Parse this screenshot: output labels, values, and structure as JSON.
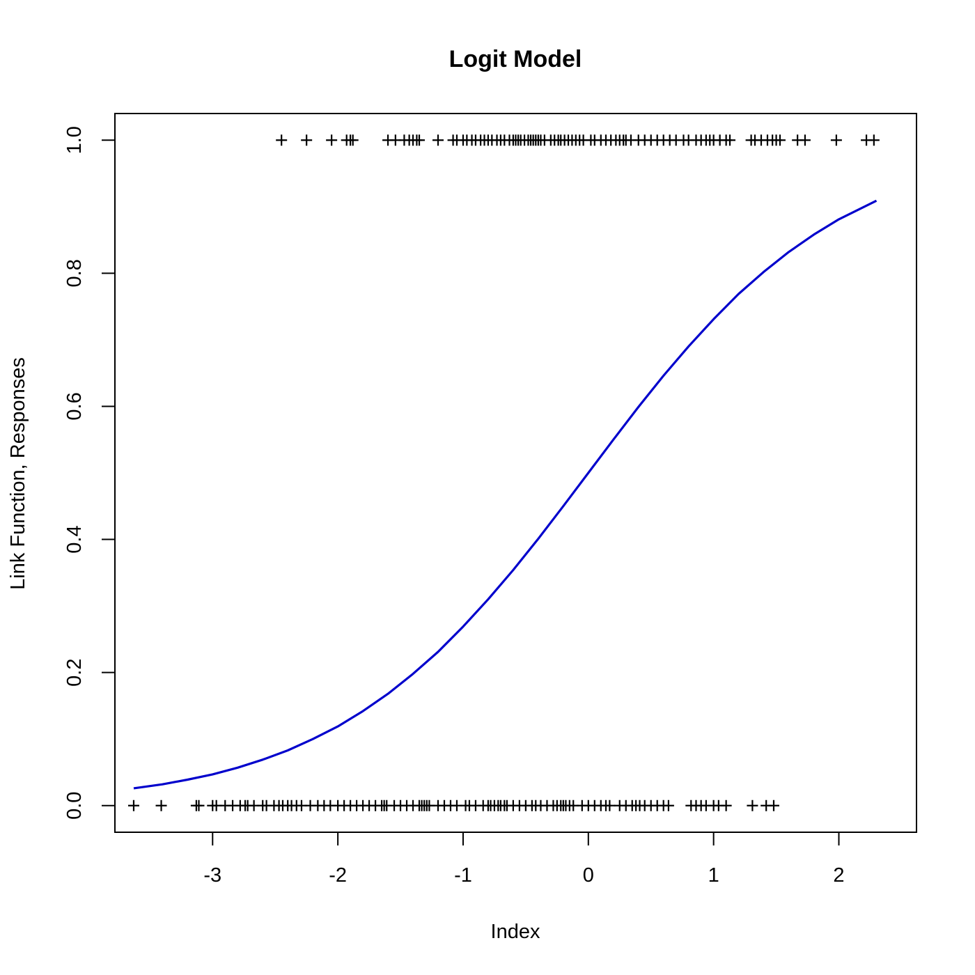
{
  "chart_data": {
    "type": "scatter",
    "title": "Logit Model",
    "xlabel": "Index",
    "ylabel": "Link Function, Responses",
    "xlim": [
      -3.78,
      2.62
    ],
    "ylim": [
      -0.04,
      1.04
    ],
    "x_ticks": [
      -3,
      -2,
      -1,
      0,
      1,
      2
    ],
    "x_tick_labels": [
      "-3",
      "-2",
      "-1",
      "0",
      "1",
      "2"
    ],
    "y_ticks": [
      0.0,
      0.2,
      0.4,
      0.6,
      0.8,
      1.0
    ],
    "y_tick_labels": [
      "0.0",
      "0.2",
      "0.4",
      "0.6",
      "0.8",
      "1.0"
    ],
    "grid": false,
    "legend": "none",
    "series": [
      {
        "kind": "points",
        "marker": "plus",
        "color": "#000000",
        "y": 1,
        "x": [
          -2.45,
          -2.25,
          -2.05,
          -1.93,
          -1.9,
          -1.88,
          -1.6,
          -1.54,
          -1.47,
          -1.43,
          -1.4,
          -1.37,
          -1.35,
          -1.2,
          -1.08,
          -1.05,
          -1.0,
          -0.97,
          -0.93,
          -0.9,
          -0.86,
          -0.83,
          -0.8,
          -0.77,
          -0.73,
          -0.7,
          -0.67,
          -0.63,
          -0.6,
          -0.58,
          -0.56,
          -0.54,
          -0.51,
          -0.48,
          -0.46,
          -0.44,
          -0.42,
          -0.4,
          -0.38,
          -0.35,
          -0.3,
          -0.27,
          -0.24,
          -0.22,
          -0.19,
          -0.16,
          -0.13,
          -0.1,
          -0.07,
          -0.04,
          0.02,
          0.05,
          0.1,
          0.14,
          0.18,
          0.22,
          0.25,
          0.28,
          0.3,
          0.34,
          0.4,
          0.45,
          0.5,
          0.55,
          0.6,
          0.65,
          0.7,
          0.76,
          0.8,
          0.86,
          0.9,
          0.94,
          0.97,
          1.0,
          1.05,
          1.1,
          1.13,
          1.3,
          1.33,
          1.38,
          1.43,
          1.47,
          1.5,
          1.53,
          1.67,
          1.73,
          1.98,
          2.22,
          2.28
        ]
      },
      {
        "kind": "points",
        "marker": "plus",
        "color": "#000000",
        "y": 0,
        "x": [
          -3.63,
          -3.41,
          -3.13,
          -3.11,
          -3.0,
          -2.97,
          -2.9,
          -2.84,
          -2.78,
          -2.74,
          -2.72,
          -2.67,
          -2.6,
          -2.57,
          -2.51,
          -2.47,
          -2.44,
          -2.4,
          -2.37,
          -2.33,
          -2.29,
          -2.22,
          -2.16,
          -2.11,
          -2.06,
          -2.0,
          -1.95,
          -1.9,
          -1.85,
          -1.8,
          -1.75,
          -1.7,
          -1.65,
          -1.63,
          -1.61,
          -1.55,
          -1.5,
          -1.45,
          -1.4,
          -1.35,
          -1.33,
          -1.31,
          -1.29,
          -1.27,
          -1.2,
          -1.15,
          -1.1,
          -1.05,
          -0.98,
          -0.95,
          -0.9,
          -0.84,
          -0.8,
          -0.78,
          -0.75,
          -0.72,
          -0.7,
          -0.67,
          -0.65,
          -0.6,
          -0.55,
          -0.5,
          -0.45,
          -0.42,
          -0.38,
          -0.33,
          -0.28,
          -0.25,
          -0.22,
          -0.2,
          -0.18,
          -0.15,
          -0.12,
          -0.05,
          0.0,
          0.05,
          0.1,
          0.14,
          0.17,
          0.25,
          0.3,
          0.35,
          0.38,
          0.41,
          0.45,
          0.5,
          0.55,
          0.6,
          0.64,
          0.82,
          0.86,
          0.9,
          0.94,
          1.0,
          1.04,
          1.1,
          1.31,
          1.42,
          1.48
        ]
      },
      {
        "kind": "line",
        "function": "logistic",
        "color": "#0000CC",
        "x": [
          -3.63,
          -3.4,
          -3.2,
          -3.0,
          -2.8,
          -2.6,
          -2.4,
          -2.2,
          -2.0,
          -1.8,
          -1.6,
          -1.4,
          -1.2,
          -1.0,
          -0.8,
          -0.6,
          -0.4,
          -0.2,
          0.0,
          0.2,
          0.4,
          0.6,
          0.8,
          1.0,
          1.2,
          1.4,
          1.6,
          1.8,
          2.0,
          2.3
        ],
        "y": [
          0.026,
          0.032,
          0.039,
          0.047,
          0.057,
          0.069,
          0.083,
          0.1,
          0.119,
          0.142,
          0.168,
          0.198,
          0.231,
          0.269,
          0.31,
          0.354,
          0.401,
          0.45,
          0.5,
          0.55,
          0.599,
          0.646,
          0.69,
          0.731,
          0.769,
          0.802,
          0.832,
          0.858,
          0.881,
          0.909
        ]
      }
    ]
  }
}
